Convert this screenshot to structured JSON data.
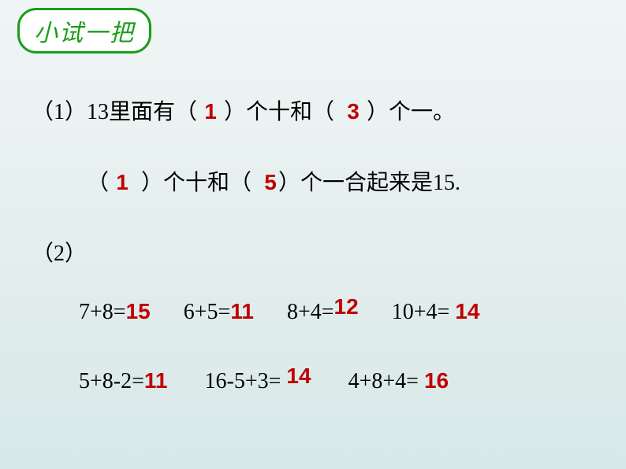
{
  "colors": {
    "background_gradient_start": "#f0f5f5",
    "background_gradient_end": "#d8e8e8",
    "badge_border": "#1a9e1a",
    "badge_text": "#1a9e1a",
    "body_text": "#000000",
    "answer_text": "#c00000"
  },
  "typography": {
    "title_fontsize": 30,
    "body_fontsize": 28,
    "title_font": "KaiTi",
    "body_font": "SimSun"
  },
  "title": "小试一把",
  "q1": {
    "label": "（1）",
    "text_a": "13里面有（",
    "ans_a": "1",
    "text_b": "）个十和（",
    "ans_b": "3",
    "text_c": "）个一。",
    "text_d": "（",
    "ans_c": "1",
    "text_e": "）个十和（",
    "ans_d": "5",
    "text_f": "）个一合起来是15."
  },
  "q2": {
    "label": "（2）",
    "row1": [
      {
        "expr": "7+8=",
        "ans": "15"
      },
      {
        "expr": "6+5=",
        "ans": "11"
      },
      {
        "expr": "8+4=",
        "ans": "12"
      },
      {
        "expr": "10+4=",
        "ans": "14"
      }
    ],
    "row2": [
      {
        "expr": "5+8-2=",
        "ans": "11"
      },
      {
        "expr": "16-5+3=",
        "ans": "14"
      },
      {
        "expr": "4+8+4=",
        "ans": "16"
      }
    ]
  }
}
